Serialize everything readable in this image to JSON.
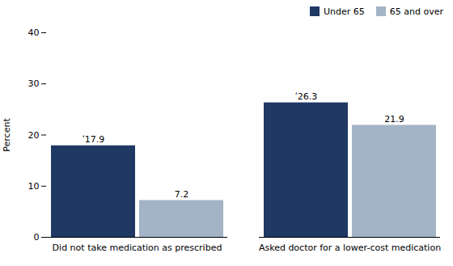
{
  "chart_data": {
    "type": "bar",
    "categories": [
      "Did not take medication as prescribed",
      "Asked doctor for a lower-cost medication"
    ],
    "series": [
      {
        "name": "Under 65",
        "color": "#1f3864",
        "values": [
          17.9,
          26.3
        ],
        "value_labels": [
          "ʹ17.9",
          "ʹ26.3"
        ]
      },
      {
        "name": "65 and over",
        "color": "#a2b4c6",
        "values": [
          7.2,
          21.9
        ]
      }
    ],
    "ylabel": "Percent",
    "ylim": [
      0,
      40
    ],
    "yticks": [
      0,
      10,
      20,
      30,
      40
    ],
    "data_labels": true,
    "legend": "upper right",
    "grid": false
  }
}
